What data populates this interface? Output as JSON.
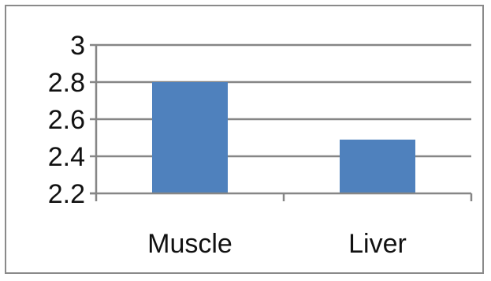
{
  "chart_data": {
    "type": "bar",
    "categories": [
      "Muscle",
      "Liver"
    ],
    "values": [
      2.8,
      2.49
    ],
    "ylim": [
      2.2,
      3.0
    ],
    "yticks": [
      2.2,
      2.4,
      2.6,
      2.8,
      3.0
    ],
    "ytick_labels": [
      "2.2",
      "2.4",
      "2.6",
      "2.8",
      "3"
    ],
    "grid": true,
    "bar_color": "#4F81BD",
    "grid_color": "#868686",
    "title": "",
    "xlabel": "",
    "ylabel": ""
  }
}
